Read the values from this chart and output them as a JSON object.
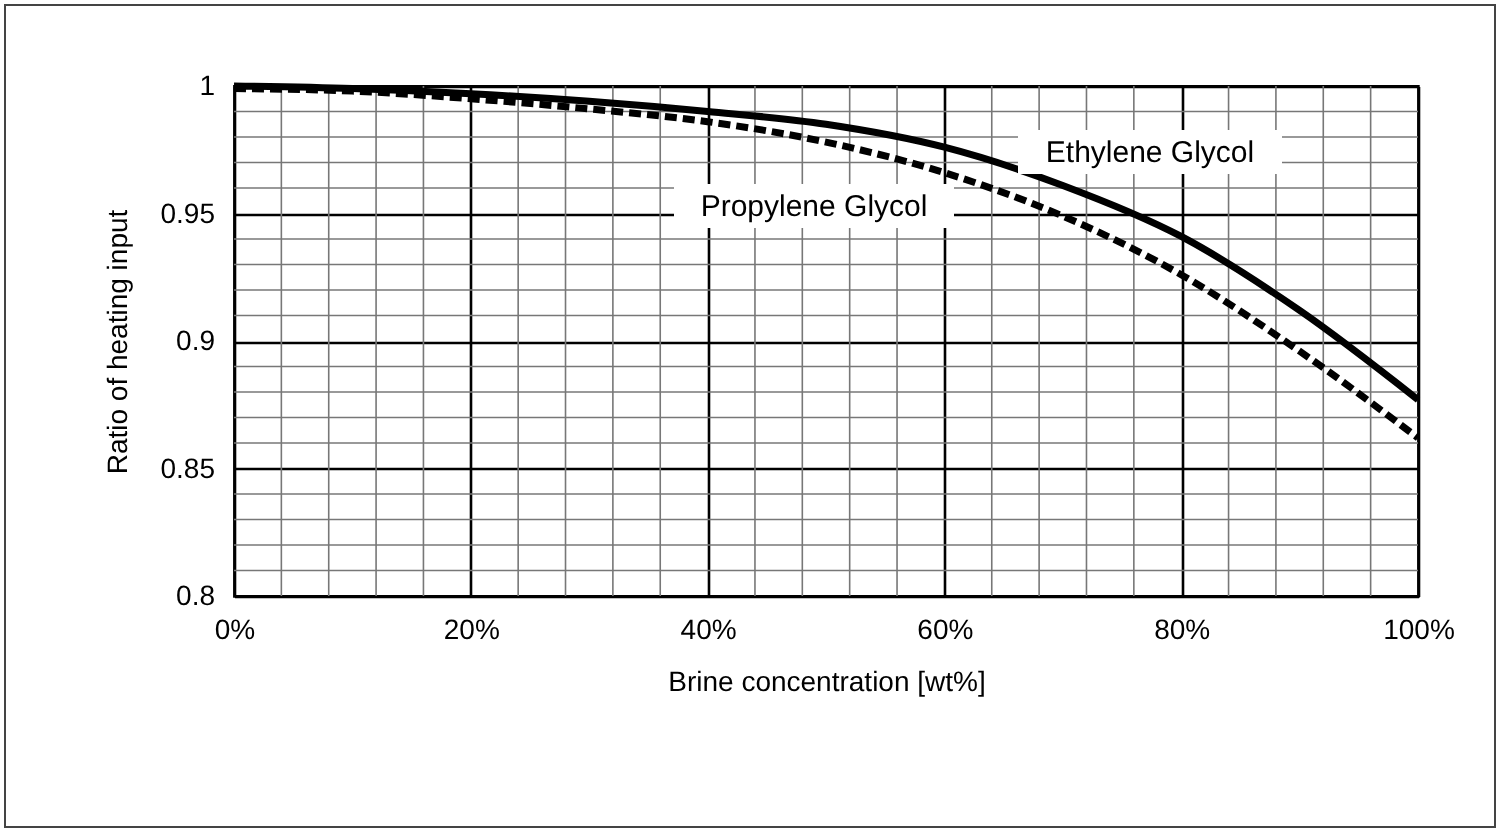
{
  "chart_data": {
    "type": "line",
    "xlabel": "Brine concentration [wt%]",
    "ylabel": "Ratio of heating input",
    "x": [
      0,
      10,
      20,
      30,
      40,
      50,
      60,
      70,
      80,
      90,
      100
    ],
    "series": [
      {
        "name": "Ethylene Glycol",
        "color": "#000000",
        "line_style": "solid",
        "values": [
          1.0,
          0.999,
          0.997,
          0.994,
          0.99,
          0.985,
          0.976,
          0.961,
          0.941,
          0.912,
          0.877
        ]
      },
      {
        "name": "Propylene Glycol",
        "color": "#000000",
        "line_style": "dashed",
        "values": [
          0.999,
          0.998,
          0.995,
          0.991,
          0.986,
          0.978,
          0.966,
          0.949,
          0.926,
          0.896,
          0.862
        ]
      }
    ],
    "xlim": [
      0,
      100
    ],
    "ylim": [
      0.8,
      1
    ],
    "xticks": [
      {
        "value": 0,
        "label": "0%"
      },
      {
        "value": 20,
        "label": "20%"
      },
      {
        "value": 40,
        "label": "40%"
      },
      {
        "value": 60,
        "label": "60%"
      },
      {
        "value": 80,
        "label": "80%"
      },
      {
        "value": 100,
        "label": "100%"
      }
    ],
    "yticks": [
      0.8,
      0.85,
      0.9,
      0.95,
      1
    ],
    "grid": true,
    "legend": false,
    "marker": "none"
  }
}
